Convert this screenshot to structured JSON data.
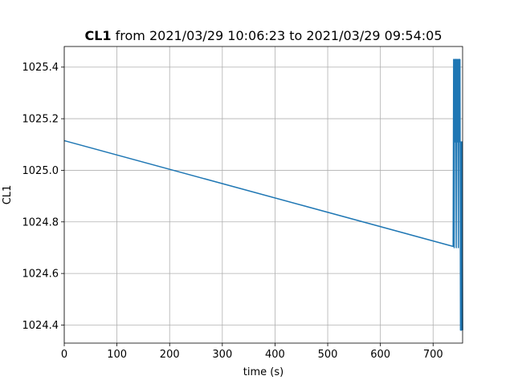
{
  "chart_data": {
    "type": "line",
    "title_bold": "CL1",
    "title_rest": " from 2021/03/29 10:06:23 to 2021/03/29 09:54:05",
    "xlabel": "time (s)",
    "ylabel": "CL1",
    "xlim": [
      0,
      756
    ],
    "ylim": [
      1024.33,
      1025.48
    ],
    "grid": true,
    "xticks": [
      0,
      100,
      200,
      300,
      400,
      500,
      600,
      700
    ],
    "xtick_labels": [
      "0",
      "100",
      "200",
      "300",
      "400",
      "500",
      "600",
      "700"
    ],
    "yticks": [
      1024.4,
      1024.6,
      1024.8,
      1025.0,
      1025.2,
      1025.4
    ],
    "ytick_labels": [
      "1024.4",
      "1024.6",
      "1024.8",
      "1025.0",
      "1025.2",
      "1025.4"
    ],
    "series": [
      {
        "color": "#1f77b4",
        "x": [
          0,
          738,
          739,
          740,
          741,
          742,
          743,
          744,
          745,
          746,
          747,
          748,
          749,
          750,
          751,
          752,
          753,
          754,
          755,
          756
        ],
        "y": [
          1025.115,
          1024.705,
          1025.43,
          1024.7,
          1025.43,
          1025.11,
          1025.43,
          1024.7,
          1025.43,
          1025.11,
          1025.43,
          1024.7,
          1025.43,
          1025.11,
          1025.43,
          1024.38,
          1025.11,
          1024.38,
          1025.11,
          1024.38
        ]
      }
    ]
  }
}
